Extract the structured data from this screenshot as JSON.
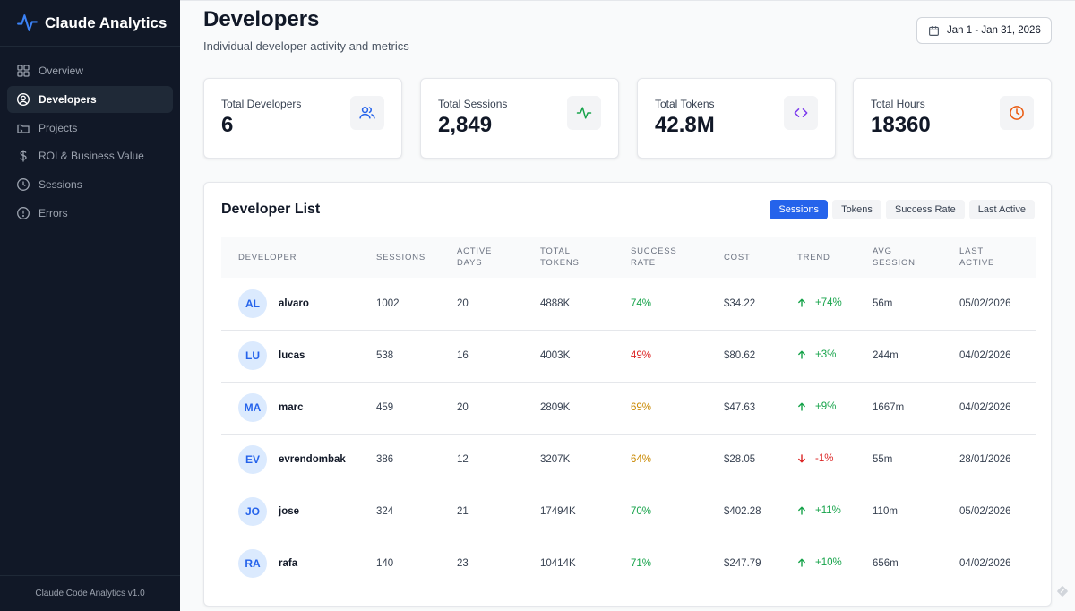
{
  "app": {
    "name": "Claude Analytics",
    "version": "Claude Code Analytics v1.0"
  },
  "nav": {
    "items": [
      {
        "label": "Overview",
        "icon": "grid-icon",
        "active": false
      },
      {
        "label": "Developers",
        "icon": "user-circle-icon",
        "active": true
      },
      {
        "label": "Projects",
        "icon": "folder-icon",
        "active": false
      },
      {
        "label": "ROI & Business Value",
        "icon": "dollar-icon",
        "active": false
      },
      {
        "label": "Sessions",
        "icon": "clock-icon",
        "active": false
      },
      {
        "label": "Errors",
        "icon": "alert-circle-icon",
        "active": false
      }
    ]
  },
  "header": {
    "title": "Developers",
    "subtitle": "Individual developer activity and metrics",
    "date_range": "Jan 1 - Jan 31, 2026"
  },
  "stats": [
    {
      "label": "Total Developers",
      "value": "6",
      "icon": "users-icon",
      "color": "#2563eb"
    },
    {
      "label": "Total Sessions",
      "value": "2,849",
      "icon": "activity-icon",
      "color": "#16a34a"
    },
    {
      "label": "Total Tokens",
      "value": "42.8M",
      "icon": "code-icon",
      "color": "#7c3aed"
    },
    {
      "label": "Total Hours",
      "value": "18360",
      "icon": "clock-icon",
      "color": "#ea580c"
    }
  ],
  "developer_list": {
    "title": "Developer List",
    "sort_options": [
      {
        "label": "Sessions",
        "active": true
      },
      {
        "label": "Tokens",
        "active": false
      },
      {
        "label": "Success Rate",
        "active": false
      },
      {
        "label": "Last Active",
        "active": false
      }
    ],
    "columns": [
      "Developer",
      "Sessions",
      "Active Days",
      "Total Tokens",
      "Success Rate",
      "Cost",
      "Trend",
      "Avg Session",
      "Last Active"
    ],
    "rows": [
      {
        "initials": "AL",
        "name": "alvaro",
        "sessions": "1002",
        "active_days": "20",
        "tokens": "4888K",
        "success_rate": "74%",
        "rate_color": "#16a34a",
        "cost": "$34.22",
        "trend": "+74%",
        "trend_up": true,
        "avg_session": "56m",
        "last_active": "05/02/2026"
      },
      {
        "initials": "LU",
        "name": "lucas",
        "sessions": "538",
        "active_days": "16",
        "tokens": "4003K",
        "success_rate": "49%",
        "rate_color": "#dc2626",
        "cost": "$80.62",
        "trend": "+3%",
        "trend_up": true,
        "avg_session": "244m",
        "last_active": "04/02/2026"
      },
      {
        "initials": "MA",
        "name": "marc",
        "sessions": "459",
        "active_days": "20",
        "tokens": "2809K",
        "success_rate": "69%",
        "rate_color": "#ca8a04",
        "cost": "$47.63",
        "trend": "+9%",
        "trend_up": true,
        "avg_session": "1667m",
        "last_active": "04/02/2026"
      },
      {
        "initials": "EV",
        "name": "evrendombak",
        "sessions": "386",
        "active_days": "12",
        "tokens": "3207K",
        "success_rate": "64%",
        "rate_color": "#ca8a04",
        "cost": "$28.05",
        "trend": "-1%",
        "trend_up": false,
        "avg_session": "55m",
        "last_active": "28/01/2026"
      },
      {
        "initials": "JO",
        "name": "jose",
        "sessions": "324",
        "active_days": "21",
        "tokens": "17494K",
        "success_rate": "70%",
        "rate_color": "#16a34a",
        "cost": "$402.28",
        "trend": "+11%",
        "trend_up": true,
        "avg_session": "110m",
        "last_active": "05/02/2026"
      },
      {
        "initials": "RA",
        "name": "rafa",
        "sessions": "140",
        "active_days": "23",
        "tokens": "10414K",
        "success_rate": "71%",
        "rate_color": "#16a34a",
        "cost": "$247.79",
        "trend": "+10%",
        "trend_up": true,
        "avg_session": "656m",
        "last_active": "04/02/2026"
      }
    ]
  },
  "colors": {
    "accent": "#2563eb",
    "up": "#16a34a",
    "down": "#dc2626",
    "sidebar_bg": "#111827"
  }
}
